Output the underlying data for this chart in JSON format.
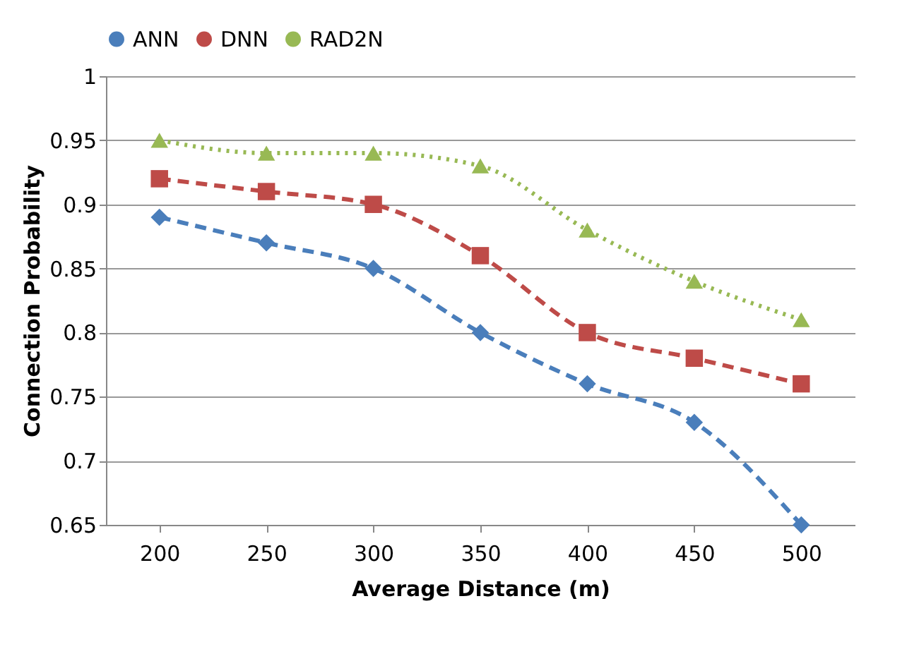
{
  "chart_data": {
    "type": "line",
    "xlabel": "Average Distance (m)",
    "ylabel": "Connection Probability",
    "categories": [
      "200",
      "250",
      "300",
      "350",
      "400",
      "450",
      "500"
    ],
    "series": [
      {
        "name": "ANN",
        "color": "#4a7ebb",
        "marker": "diamond",
        "line_style": "dashed",
        "values": [
          0.89,
          0.87,
          0.85,
          0.8,
          0.76,
          0.73,
          0.65
        ]
      },
      {
        "name": "DNN",
        "color": "#be4b48",
        "marker": "square",
        "line_style": "dashed",
        "values": [
          0.92,
          0.91,
          0.9,
          0.86,
          0.8,
          0.78,
          0.76
        ]
      },
      {
        "name": "RAD2N",
        "color": "#98b954",
        "marker": "triangle",
        "line_style": "dotted",
        "values": [
          0.95,
          0.94,
          0.94,
          0.93,
          0.88,
          0.84,
          0.81
        ]
      }
    ],
    "ylim": [
      0.65,
      1
    ],
    "yticks": [
      0.65,
      0.7,
      0.75,
      0.8,
      0.85,
      0.9,
      0.95,
      1
    ],
    "grid": "y",
    "legend": "top"
  }
}
